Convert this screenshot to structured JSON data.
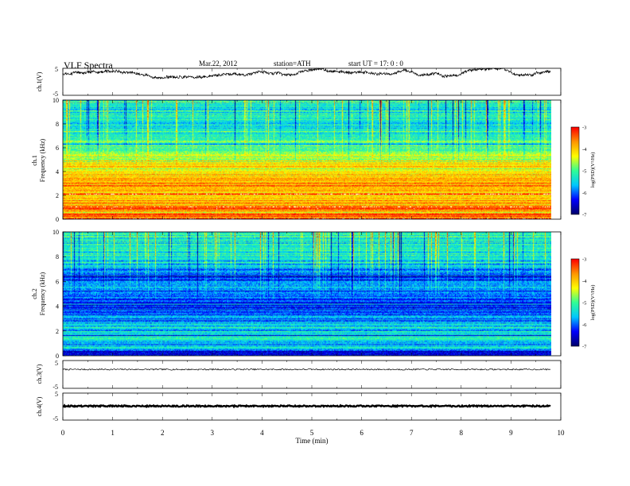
{
  "header": {
    "title": "VLF Spectra",
    "date": "Mar.22, 2012",
    "station": "station=ATH",
    "start": "start  UT  =    17: 0  : 0"
  },
  "colors": {
    "trace": "#000000",
    "colormap": [
      "#00006e",
      "#0000ff",
      "#00c8ff",
      "#32ff96",
      "#ffff00",
      "#ff9600",
      "#ff0000",
      "#ffffff"
    ]
  },
  "chart_data": [
    {
      "type": "line",
      "panel": "ch1-waveform",
      "ylabel": "ch.1(V)",
      "yticks": [
        "5",
        "-5"
      ],
      "ylim": [
        -5,
        5
      ],
      "xlim": [
        0,
        10
      ],
      "data_end_min": 9.8,
      "y_min": 1.2,
      "y_max": 5.0
    },
    {
      "type": "heatmap",
      "panel": "ch1-spectrogram",
      "ylabel": [
        "ch.1",
        "Frequency  (kHz)"
      ],
      "ylim": [
        0,
        10
      ],
      "yticks": [
        "0",
        "2",
        "4",
        "6",
        "8",
        "10"
      ],
      "xlim": [
        0,
        10
      ],
      "data_end_min": 9.8,
      "colorbar": {
        "label": "log(PSD)(V²/Hz)",
        "ticks": [
          "-3",
          "-4",
          "-5",
          "-6",
          "-7"
        ],
        "range": [
          -7,
          -3
        ]
      },
      "profile_khz": [
        [
          0,
          -3.2
        ],
        [
          0.4,
          -3.6
        ],
        [
          1,
          -3.9
        ],
        [
          2,
          -3.9
        ],
        [
          3,
          -3.8
        ],
        [
          4,
          -4.2
        ],
        [
          5,
          -4.4
        ],
        [
          6,
          -5.0
        ],
        [
          7,
          -5.2
        ],
        [
          8,
          -5.3
        ],
        [
          10,
          -5.3
        ]
      ]
    },
    {
      "type": "heatmap",
      "panel": "ch2-spectrogram",
      "ylabel": [
        "ch.2",
        "Frequency  (kHz)"
      ],
      "ylim": [
        0,
        10
      ],
      "yticks": [
        "0",
        "2",
        "4",
        "6",
        "8",
        "10"
      ],
      "xlim": [
        0,
        10
      ],
      "data_end_min": 9.8,
      "colorbar": {
        "label": "log(PSD)(V²/Hz)",
        "ticks": [
          "-3",
          "-4",
          "-5",
          "-6",
          "-7"
        ],
        "range": [
          -7,
          -3
        ]
      },
      "profile_khz": [
        [
          0,
          -6.7
        ],
        [
          0.5,
          -5.6
        ],
        [
          1,
          -5.4
        ],
        [
          2,
          -5.6
        ],
        [
          3,
          -5.9
        ],
        [
          4,
          -6.2
        ],
        [
          5,
          -6.0
        ],
        [
          6,
          -6.1
        ],
        [
          7,
          -5.8
        ],
        [
          8,
          -5.4
        ],
        [
          10,
          -5.3
        ]
      ]
    },
    {
      "type": "line",
      "panel": "ch3-waveform",
      "ylabel": "ch.3(V)",
      "yticks": [
        "5",
        "-5"
      ],
      "ylim": [
        -5,
        5
      ],
      "xlim": [
        0,
        10
      ],
      "data_end_min": 9.8,
      "y_level": 1.8
    },
    {
      "type": "line",
      "panel": "ch4-waveform",
      "ylabel": "ch.4(V)",
      "yticks": [
        "5",
        "-5"
      ],
      "ylim": [
        -5,
        5
      ],
      "xlim": [
        0,
        10
      ],
      "data_end_min": 9.8,
      "y_level": 0.2
    }
  ],
  "xaxis": {
    "label": "Time  (min)",
    "ticks": [
      "0",
      "1",
      "2",
      "3",
      "4",
      "5",
      "6",
      "7",
      "8",
      "9",
      "10"
    ],
    "range": [
      0,
      10
    ]
  }
}
